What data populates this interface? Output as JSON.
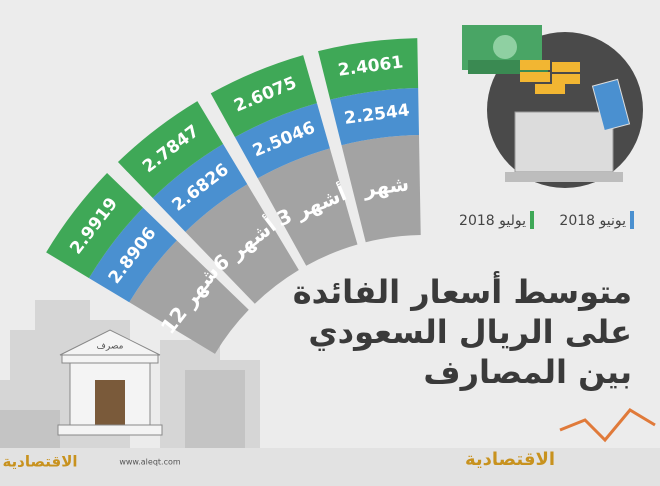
{
  "title": [
    "متوسط أسعار الفائدة",
    "على الريال السعودي",
    "بين المصارف"
  ],
  "legend": [
    {
      "label": "يونيو 2018",
      "color": "#4a90d0"
    },
    {
      "label": "يوليو 2018",
      "color": "#3fa857"
    }
  ],
  "periods": [
    {
      "label": "شهر",
      "june": 2.2544,
      "july": 2.4061
    },
    {
      "label": "3 أشهر",
      "june": 2.5046,
      "july": 2.6075
    },
    {
      "label": "6 أشهر",
      "june": 2.6826,
      "july": 2.7847
    },
    {
      "label": "12 شهر",
      "june": 2.8906,
      "july": 2.9919
    }
  ],
  "bank_label": "مصرف",
  "footer": {
    "url": "www.aleqt.com",
    "logo_left": "الاقتصادية",
    "logo_right": "الاقتصادية"
  }
}
